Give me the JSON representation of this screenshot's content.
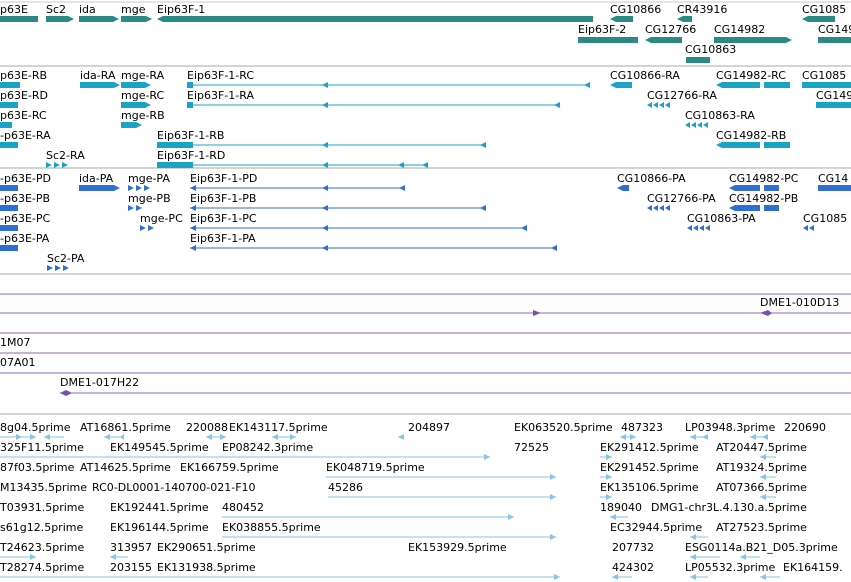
{
  "colors": {
    "teal": "#2b8a86",
    "cyan": "#1ba3c6",
    "blue": "#2f6fd1",
    "purple": "#7a4fb0",
    "light_blue": "#86c5e3",
    "separator": "#a9a9a9",
    "purple_line": "#8e68b8",
    "grid": "#c9c9c9"
  },
  "gene_track": {
    "labels": [
      {
        "text": "p63E"
      },
      {
        "text": "Sc2"
      },
      {
        "text": "ida"
      },
      {
        "text": "mge"
      },
      {
        "text": "Eip63F-1"
      },
      {
        "text": "CG10866"
      },
      {
        "text": "CR43916"
      },
      {
        "text": "CG1085"
      },
      {
        "text": "Eip63F-2"
      },
      {
        "text": "CG12766"
      },
      {
        "text": "CG14982"
      },
      {
        "text": "CG149"
      },
      {
        "text": "CG10863"
      }
    ]
  },
  "transcripts_ra": {
    "labels": [
      {
        "text": "p63E-RB"
      },
      {
        "text": "ida-RA"
      },
      {
        "text": "mge-RA"
      },
      {
        "text": "Eip63F-1-RC"
      },
      {
        "text": "CG10866-RA"
      },
      {
        "text": "CG14982-RC"
      },
      {
        "text": "CG1085"
      },
      {
        "text": "p63E-RD"
      },
      {
        "text": "mge-RC"
      },
      {
        "text": "Eip63F-1-RA"
      },
      {
        "text": "CG12766-RA"
      },
      {
        "text": "CG149"
      },
      {
        "text": "p63E-RC"
      },
      {
        "text": "mge-RB"
      },
      {
        "text": "CG10863-RA"
      },
      {
        "text": "-p63E-RA"
      },
      {
        "text": "Eip63F-1-RB"
      },
      {
        "text": "CG14982-RB"
      },
      {
        "text": "Sc2-RA"
      },
      {
        "text": "Eip63F-1-RD"
      }
    ]
  },
  "proteins_pa": {
    "labels": [
      {
        "text": "-p63E-PD"
      },
      {
        "text": "ida-PA"
      },
      {
        "text": "mge-PA"
      },
      {
        "text": "Eip63F-1-PD"
      },
      {
        "text": "CG10866-PA"
      },
      {
        "text": "CG14982-PC"
      },
      {
        "text": "CG14"
      },
      {
        "text": "-p63E-PB"
      },
      {
        "text": "mge-PB"
      },
      {
        "text": "Eip63F-1-PB"
      },
      {
        "text": "CG12766-PA"
      },
      {
        "text": "CG14982-PB"
      },
      {
        "text": "-p63E-PC"
      },
      {
        "text": "mge-PC"
      },
      {
        "text": "Eip63F-1-PC"
      },
      {
        "text": "CG10863-PA"
      },
      {
        "text": "CG1085"
      },
      {
        "text": "-p63E-PA"
      },
      {
        "text": "Eip63F-1-PA"
      },
      {
        "text": "Sc2-PA"
      }
    ]
  },
  "bac_track": {
    "labels": [
      {
        "text": "DME1-010D13"
      },
      {
        "text": "1M07"
      },
      {
        "text": "07A01"
      },
      {
        "text": "DME1-017H22"
      }
    ]
  },
  "est_track": {
    "labels": [
      {
        "text": "8g04.5prime"
      },
      {
        "text": "AT16861.5prime"
      },
      {
        "text": "220088"
      },
      {
        "text": "EK143117.5prime"
      },
      {
        "text": "204897"
      },
      {
        "text": "EK063520.5prime"
      },
      {
        "text": "487323"
      },
      {
        "text": "LP03948.3prime"
      },
      {
        "text": "220690"
      },
      {
        "text": "325F11.5prime"
      },
      {
        "text": "EK149545.5prime"
      },
      {
        "text": "EP08242.3prime"
      },
      {
        "text": "72525"
      },
      {
        "text": "EK291412.5prime"
      },
      {
        "text": "AT20447.5prime"
      },
      {
        "text": "87f03.5prime"
      },
      {
        "text": "AT14625.5prime"
      },
      {
        "text": "EK166759.5prime"
      },
      {
        "text": "EK048719.5prime"
      },
      {
        "text": "EK291452.5prime"
      },
      {
        "text": "AT19324.5prime"
      },
      {
        "text": "M13435.5prime"
      },
      {
        "text": "RC0-DL0001-140700-021-F10"
      },
      {
        "text": "45286"
      },
      {
        "text": "EK135106.5prime"
      },
      {
        "text": "AT07366.5prime"
      },
      {
        "text": "T03931.5prime"
      },
      {
        "text": "EK192441.5prime"
      },
      {
        "text": "480452"
      },
      {
        "text": "189040"
      },
      {
        "text": "DMG1-chr3L.4.130.a.5prime"
      },
      {
        "text": "s61g12.5prime"
      },
      {
        "text": "EK196144.5prime"
      },
      {
        "text": "EK038855.5prime"
      },
      {
        "text": "EC32944.5prime"
      },
      {
        "text": "AT27523.5prime"
      },
      {
        "text": "T24623.5prime"
      },
      {
        "text": "313957"
      },
      {
        "text": "EK290651.5prime"
      },
      {
        "text": "EK153929.5prime"
      },
      {
        "text": "207732"
      },
      {
        "text": "ESG0114a.B21_D05.3prime"
      },
      {
        "text": "T28274.5prime"
      },
      {
        "text": "203155"
      },
      {
        "text": "EK131938.5prime"
      },
      {
        "text": "424302"
      },
      {
        "text": "LP05532.3prime"
      },
      {
        "text": "EK164159."
      }
    ]
  }
}
